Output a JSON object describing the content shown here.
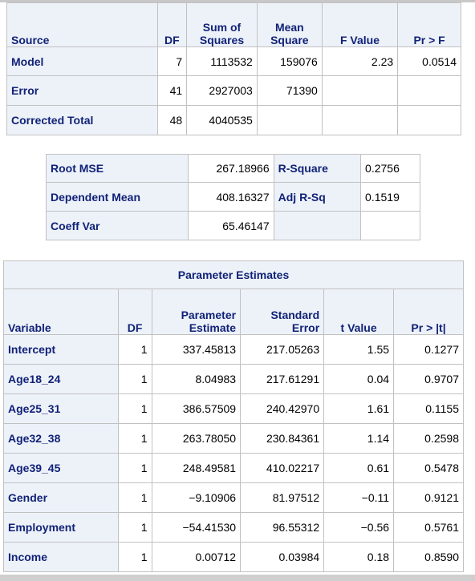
{
  "anova": {
    "headers": {
      "source": "Source",
      "df": "DF",
      "ss_line1": "Sum of",
      "ss_line2": "Squares",
      "ms_line1": "Mean",
      "ms_line2": "Square",
      "f": "F Value",
      "p": "Pr > F"
    },
    "rows": [
      {
        "source": "Model",
        "df": "7",
        "ss": "1113532",
        "ms": "159076",
        "f": "2.23",
        "p": "0.0514"
      },
      {
        "source": "Error",
        "df": "41",
        "ss": "2927003",
        "ms": "71390",
        "f": "",
        "p": ""
      },
      {
        "source": "Corrected Total",
        "df": "48",
        "ss": "4040535",
        "ms": "",
        "f": "",
        "p": ""
      }
    ]
  },
  "fit": {
    "rows": [
      {
        "label1": "Root MSE",
        "value1": "267.18966",
        "label2": "R-Square",
        "value2": "0.2756"
      },
      {
        "label1": "Dependent Mean",
        "value1": "408.16327",
        "label2": "Adj R-Sq",
        "value2": "0.1519"
      },
      {
        "label1": "Coeff Var",
        "value1": "65.46147",
        "label2": "",
        "value2": ""
      }
    ]
  },
  "params": {
    "caption": "Parameter Estimates",
    "headers": {
      "variable": "Variable",
      "df": "DF",
      "est_line1": "Parameter",
      "est_line2": "Estimate",
      "se_line1": "Standard",
      "se_line2": "Error",
      "t": "t Value",
      "p": "Pr > |t|"
    },
    "rows": [
      {
        "variable": "Intercept",
        "df": "1",
        "estimate": "337.45813",
        "se": "217.05263",
        "t": "1.55",
        "p": "0.1277"
      },
      {
        "variable": "Age18_24",
        "df": "1",
        "estimate": "8.04983",
        "se": "217.61291",
        "t": "0.04",
        "p": "0.9707"
      },
      {
        "variable": "Age25_31",
        "df": "1",
        "estimate": "386.57509",
        "se": "240.42970",
        "t": "1.61",
        "p": "0.1155"
      },
      {
        "variable": "Age32_38",
        "df": "1",
        "estimate": "263.78050",
        "se": "230.84361",
        "t": "1.14",
        "p": "0.2598"
      },
      {
        "variable": "Age39_45",
        "df": "1",
        "estimate": "248.49581",
        "se": "410.02217",
        "t": "0.61",
        "p": "0.5478"
      },
      {
        "variable": "Gender",
        "df": "1",
        "estimate": "−9.10906",
        "se": "81.97512",
        "t": "−0.11",
        "p": "0.9121"
      },
      {
        "variable": "Employment",
        "df": "1",
        "estimate": "−54.41530",
        "se": "96.55312",
        "t": "−0.56",
        "p": "0.5761"
      },
      {
        "variable": "Income",
        "df": "1",
        "estimate": "0.00712",
        "se": "0.03984",
        "t": "0.18",
        "p": "0.8590"
      }
    ]
  }
}
